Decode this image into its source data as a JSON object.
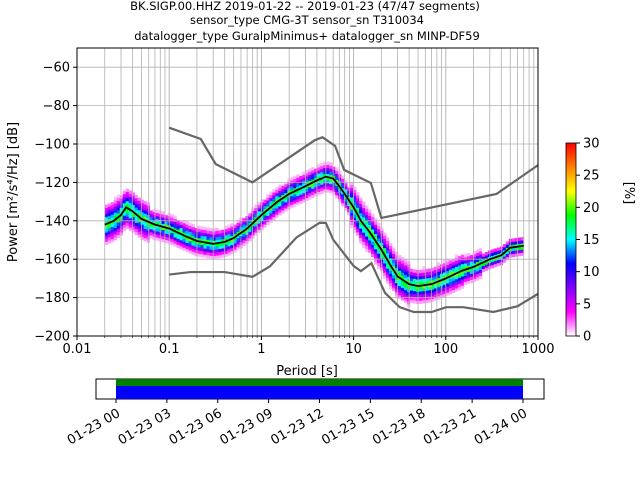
{
  "chart_data": {
    "type": "heatmap",
    "title_lines": [
      "BK.SIGP.00.HHZ   2019-01-22 -- 2019-01-23  (47/47 segments)",
      "sensor_type CMG-3T sensor_sn T310034",
      "datalogger_type GuralpMinimus+ datalogger_sn MINP-DF59"
    ],
    "xlabel": "Period [s]",
    "ylabel": "Power [m²/s⁴/Hz] [dB]",
    "x_scale": "log",
    "xlim": [
      0.01,
      1000
    ],
    "ylim": [
      -200,
      -50
    ],
    "x_ticks": [
      {
        "value": 0.01,
        "label": "0.01"
      },
      {
        "value": 0.1,
        "label": "0.1"
      },
      {
        "value": 1,
        "label": "1"
      },
      {
        "value": 10,
        "label": "10"
      },
      {
        "value": 100,
        "label": "100"
      },
      {
        "value": 1000,
        "label": "1000"
      }
    ],
    "y_ticks": [
      {
        "value": -60,
        "label": "−60"
      },
      {
        "value": -80,
        "label": "−80"
      },
      {
        "value": -100,
        "label": "−100"
      },
      {
        "value": -120,
        "label": "−120"
      },
      {
        "value": -140,
        "label": "−140"
      },
      {
        "value": -160,
        "label": "−160"
      },
      {
        "value": -180,
        "label": "−180"
      },
      {
        "value": -200,
        "label": "−200"
      }
    ],
    "grid": true,
    "colorbar": {
      "label": "[%]",
      "range": [
        0,
        30
      ],
      "ticks": [
        {
          "value": 0,
          "label": "0"
        },
        {
          "value": 5,
          "label": "5"
        },
        {
          "value": 10,
          "label": "10"
        },
        {
          "value": 15,
          "label": "15"
        },
        {
          "value": 20,
          "label": "20"
        },
        {
          "value": 25,
          "label": "25"
        },
        {
          "value": 30,
          "label": "30"
        }
      ],
      "colors": [
        "#ffffff",
        "#ff00ff",
        "#8000ff",
        "#0000ff",
        "#00ffff",
        "#00ff00",
        "#ffff00",
        "#ff8000",
        "#ff0000"
      ]
    },
    "noise_model_high": [
      [
        0.1,
        -91.5
      ],
      [
        0.22,
        -97.4
      ],
      [
        0.32,
        -110.5
      ],
      [
        0.8,
        -120
      ],
      [
        3.8,
        -98
      ],
      [
        4.6,
        -96.5
      ],
      [
        6.3,
        -101
      ],
      [
        7.9,
        -113.5
      ],
      [
        15.4,
        -120.3
      ],
      [
        20,
        -138.5
      ],
      [
        354.8,
        -126
      ],
      [
        1000,
        -111
      ]
    ],
    "noise_model_low": [
      [
        0.1,
        -168
      ],
      [
        0.17,
        -166.7
      ],
      [
        0.4,
        -166.7
      ],
      [
        0.8,
        -169.2
      ],
      [
        1.24,
        -163.7
      ],
      [
        2.4,
        -148.7
      ],
      [
        4.3,
        -141
      ],
      [
        5,
        -141.1
      ],
      [
        6,
        -149.8
      ],
      [
        10,
        -163.5
      ],
      [
        12,
        -166.2
      ],
      [
        15.6,
        -162.1
      ],
      [
        21.9,
        -177.5
      ],
      [
        31.6,
        -185
      ],
      [
        45,
        -187.5
      ],
      [
        70,
        -187.5
      ],
      [
        101,
        -185
      ],
      [
        154,
        -185
      ],
      [
        328,
        -187.5
      ],
      [
        600,
        -184.5
      ],
      [
        1000,
        -178
      ]
    ],
    "mean_psd": [
      [
        0.02,
        -142
      ],
      [
        0.025,
        -140
      ],
      [
        0.03,
        -137
      ],
      [
        0.034,
        -133
      ],
      [
        0.04,
        -135
      ],
      [
        0.05,
        -139
      ],
      [
        0.07,
        -142
      ],
      [
        0.1,
        -144
      ],
      [
        0.15,
        -148
      ],
      [
        0.2,
        -150.5
      ],
      [
        0.3,
        -152
      ],
      [
        0.4,
        -151
      ],
      [
        0.5,
        -149
      ],
      [
        0.7,
        -144
      ],
      [
        1,
        -137
      ],
      [
        1.5,
        -130
      ],
      [
        2,
        -126
      ],
      [
        3,
        -122
      ],
      [
        4,
        -119
      ],
      [
        5,
        -117
      ],
      [
        6,
        -118
      ],
      [
        7,
        -122
      ],
      [
        8,
        -126
      ],
      [
        10,
        -133
      ],
      [
        12,
        -140
      ],
      [
        15,
        -146
      ],
      [
        20,
        -155
      ],
      [
        25,
        -163
      ],
      [
        30,
        -169
      ],
      [
        40,
        -173
      ],
      [
        50,
        -174
      ],
      [
        70,
        -173
      ],
      [
        100,
        -170
      ],
      [
        150,
        -166
      ],
      [
        200,
        -164
      ],
      [
        300,
        -160
      ],
      [
        400,
        -158
      ],
      [
        500,
        -154
      ],
      [
        700,
        -153
      ]
    ],
    "timeline": {
      "ticks": [
        "01-23 00",
        "01-23 03",
        "01-23 06",
        "01-23 09",
        "01-23 12",
        "01-23 15",
        "01-23 18",
        "01-23 21",
        "01-24 00"
      ],
      "coverage_start_hours": 0,
      "coverage_end_hours": 24
    }
  }
}
